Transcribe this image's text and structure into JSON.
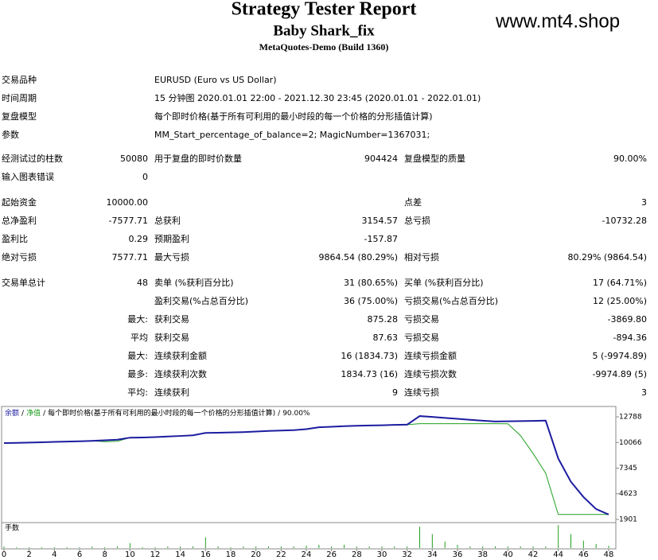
{
  "header": {
    "title": "Strategy Tester Report",
    "subtitle": "Baby Shark_fix",
    "build": "MetaQuotes-Demo (Build 1360)",
    "watermark": "www.mt4.shop"
  },
  "info": [
    [
      "交易品种",
      "EURUSD (Euro vs US Dollar)"
    ],
    [
      "时间周期",
      "15 分钟图 2020.01.01 22:00 - 2021.12.30 23:45 (2020.01.01 - 2022.01.01)"
    ],
    [
      "复盘模型",
      "每个即时价格(基于所有可利用的最小时段的每一个价格的分形插值计算)"
    ],
    [
      "参数",
      "MM_Start_percentage_of_balance=2; MagicNumber=1367031;"
    ]
  ],
  "stats": [
    [
      [
        "经测试过的柱数",
        "50080",
        "用于复盘的即时价数量",
        "904424",
        "复盘模型的质量",
        "90.00%"
      ],
      [
        "输入图表错误",
        "0",
        null,
        null,
        null,
        null
      ]
    ],
    [
      [
        "起始资金",
        "10000.00",
        null,
        null,
        "点差",
        "3"
      ],
      [
        "总净盈利",
        "-7577.71",
        "总获利",
        "3154.57",
        "总亏损",
        "-10732.28"
      ],
      [
        "盈利比",
        "0.29",
        "预期盈利",
        "-157.87",
        null,
        null
      ],
      [
        "绝对亏损",
        "7577.71",
        "最大亏损",
        "9864.54 (80.29%)",
        "相对亏损",
        "80.29% (9864.54)"
      ]
    ],
    [
      [
        "交易单总计",
        "48",
        "卖单 (%获利百分比)",
        "31 (80.65%)",
        "买单 (%获利百分比)",
        "17 (64.71%)"
      ],
      [
        null,
        null,
        "盈利交易(%占总百分比)",
        "36 (75.00%)",
        "亏损交易(%占总百分比)",
        "12 (25.00%)"
      ],
      [
        null,
        "最大:",
        "获利交易",
        "875.28",
        "亏损交易",
        "-3869.80"
      ],
      [
        null,
        "平均",
        "获利交易",
        "87.63",
        "亏损交易",
        "-894.36"
      ],
      [
        null,
        "最大:",
        "连续获利金额",
        "16 (1834.73)",
        "连续亏损金额",
        "5 (-9974.89)"
      ],
      [
        null,
        "最多:",
        "连续获利次数",
        "1834.73 (16)",
        "连续亏损次数",
        "-9974.89 (5)"
      ],
      [
        null,
        "平均:",
        "连续获利",
        "9",
        "连续亏损",
        "3"
      ]
    ]
  ],
  "graph": {
    "type": "line",
    "separator": "/",
    "model": "每个即时价格(基于所有可利用的最小时段的每一个价格的分形插值计算)",
    "quality": "90.00%",
    "xlim": [
      0,
      48
    ],
    "xticks": [
      0,
      2,
      4,
      6,
      8,
      10,
      12,
      14,
      16,
      18,
      20,
      22,
      24,
      26,
      28,
      30,
      32,
      34,
      36,
      38,
      40,
      42,
      44,
      46,
      48
    ],
    "ylim": [
      1560,
      13890
    ],
    "yticks": [
      1901,
      4623,
      7345,
      10066,
      12788
    ],
    "series": [
      {
        "name": "余额",
        "color": "#1c1ca0",
        "values": [
          10000,
          10030,
          10060,
          10090,
          10130,
          10160,
          10200,
          10240,
          10300,
          10360,
          10580,
          10600,
          10640,
          10700,
          10760,
          10830,
          11085,
          11100,
          11130,
          11170,
          11230,
          11290,
          11340,
          11380,
          11480,
          11680,
          11740,
          11800,
          11840,
          11870,
          11900,
          11935,
          11960,
          12870,
          12780,
          12680,
          12580,
          12480,
          12380,
          12300,
          12320,
          12340,
          12360,
          12390,
          8360,
          5900,
          4280,
          3000,
          2422.29
        ]
      },
      {
        "name": "净值",
        "color": "#20a020",
        "values": [
          10000,
          10030,
          10060,
          10090,
          10130,
          10160,
          10200,
          10240,
          10150,
          10200,
          10580,
          10600,
          10640,
          10700,
          10760,
          10830,
          11085,
          11100,
          11130,
          11170,
          11230,
          11290,
          11340,
          11380,
          11480,
          11680,
          11740,
          11800,
          11840,
          11870,
          11900,
          11935,
          11960,
          12060,
          12060,
          12060,
          12060,
          12060,
          12060,
          12060,
          12050,
          10800,
          8900,
          6800,
          2422.29,
          2422.29,
          2422.29,
          2422.29,
          2422.29
        ]
      }
    ],
    "volume": {
      "name": "手数",
      "color": "#20a020",
      "ylim": [
        0,
        0.3
      ],
      "values": [
        0.02,
        0.01,
        0.01,
        0.01,
        0.01,
        0.01,
        0.01,
        0.02,
        0.01,
        0.02,
        0.06,
        0.01,
        0.01,
        0.02,
        0.02,
        0.02,
        0.13,
        0.02,
        0.01,
        0.02,
        0.02,
        0.02,
        0.02,
        0.02,
        0.03,
        0.04,
        0.02,
        0.04,
        0.02,
        0.02,
        0.02,
        0.02,
        0.02,
        0.26,
        0.17,
        0.08,
        0.04,
        0.02,
        0.02,
        0.02,
        0.02,
        0.02,
        0.02,
        0.02,
        0.28,
        0.17,
        0.09,
        0.05,
        0.03
      ]
    }
  }
}
